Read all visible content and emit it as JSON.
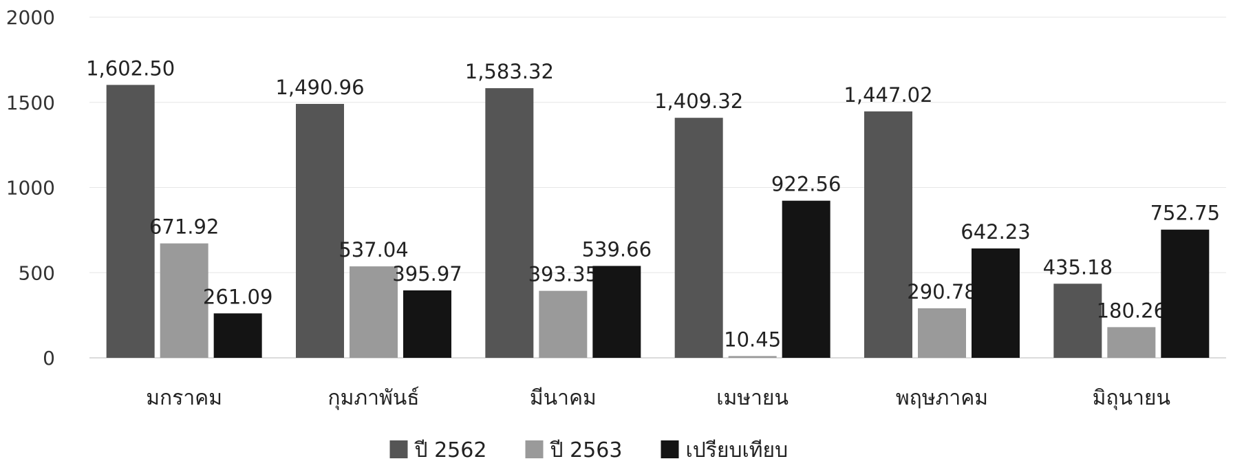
{
  "chart_data": {
    "type": "bar",
    "title": "",
    "xlabel": "",
    "ylabel": "",
    "ylim": [
      0,
      2000
    ],
    "yticks": [
      0,
      500,
      1000,
      1500,
      2000
    ],
    "categories": [
      "มกราคม",
      "กุมภาพันธ์",
      "มีนาคม",
      "เมษายน",
      "พฤษภาคม",
      "มิถุนายน"
    ],
    "series": [
      {
        "name": "ปี 2562",
        "color": "#555555",
        "values": [
          1602.5,
          1490.96,
          1583.32,
          1409.32,
          1447.02,
          435.18
        ],
        "labels": [
          "1,602.50",
          "1,490.96",
          "1,583.32",
          "1,409.32",
          "1,447.02",
          "435.18"
        ]
      },
      {
        "name": "ปี 2563",
        "color": "#9a9a9a",
        "values": [
          671.92,
          537.04,
          393.35,
          10.45,
          290.78,
          180.26
        ],
        "labels": [
          "671.92",
          "537.04",
          "393.35",
          "10.45",
          "290.78",
          "180.26"
        ]
      },
      {
        "name": "เปรียบเทียบ",
        "color": "#141414",
        "values": [
          261.09,
          395.97,
          539.66,
          922.56,
          642.23,
          752.75
        ],
        "labels": [
          "261.09",
          "395.97",
          "539.66",
          "922.56",
          "642.23",
          "752.75"
        ]
      }
    ],
    "grid": true,
    "legend_position": "bottom"
  }
}
